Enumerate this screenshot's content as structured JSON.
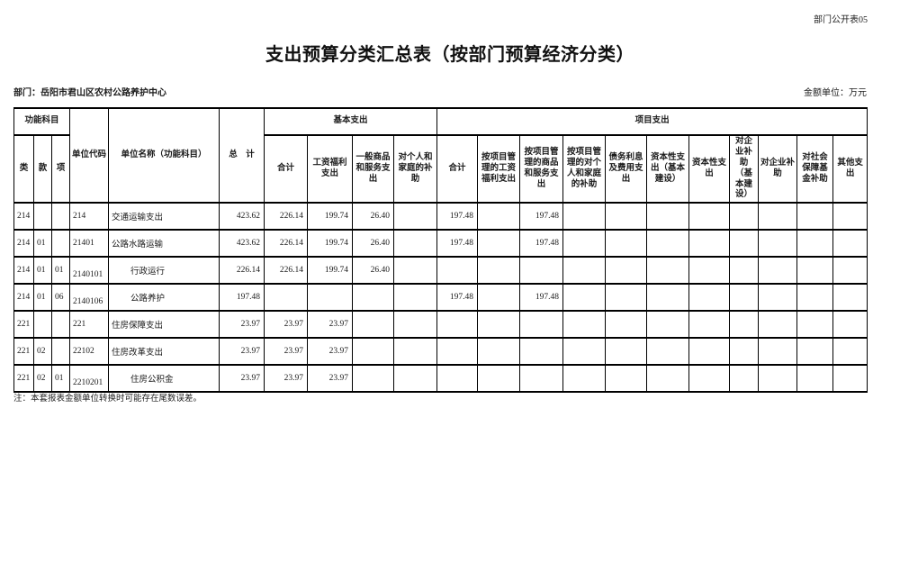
{
  "page": {
    "doc_code": "部门公开表05",
    "title": "支出预算分类汇总表（按部门预算经济分类）",
    "department_label": "部门：岳阳市君山区农村公路养护中心",
    "unit_label": "金额单位：万元",
    "note": "注：本套报表金额单位转换时可能存在尾数误差。"
  },
  "table": {
    "header": {
      "func_group": "功能科目",
      "cls": "类",
      "sec": "款",
      "item": "项",
      "unit_code": "单位代码",
      "unit_name": "单位名称（功能科目）",
      "total": "总　计",
      "basic_group": "基本支出",
      "basic_cols": [
        "合计",
        "工资福利支出",
        "一般商品和服务支出",
        "对个人和家庭的补助"
      ],
      "project_group": "项目支出",
      "project_cols": [
        "合计",
        "按项目管理的工资福利支出",
        "按项目管理的商品和服务支出",
        "按项目管理的对个人和家庭的补助",
        "债务利息及费用支出",
        "资本性支出（基本建设）",
        "资本性支出",
        "对企业补助（基本建设）",
        "对企业补助",
        "对社会保障基金补助",
        "其他支出"
      ]
    },
    "rows": [
      {
        "cls": "214",
        "sec": "",
        "item": "",
        "code": "214",
        "name": "交通运输支出",
        "indent": false,
        "values": [
          "423.62",
          "226.14",
          "199.74",
          "26.40",
          "",
          "197.48",
          "",
          "197.48",
          "",
          "",
          "",
          "",
          "",
          "",
          "",
          ""
        ]
      },
      {
        "cls": "214",
        "sec": "01",
        "item": "",
        "code": "21401",
        "name": "公路水路运输",
        "indent": false,
        "values": [
          "423.62",
          "226.14",
          "199.74",
          "26.40",
          "",
          "197.48",
          "",
          "197.48",
          "",
          "",
          "",
          "",
          "",
          "",
          "",
          ""
        ]
      },
      {
        "cls": "214",
        "sec": "01",
        "item": "01",
        "code": "2140101",
        "name": "行政运行",
        "indent": true,
        "values": [
          "226.14",
          "226.14",
          "199.74",
          "26.40",
          "",
          "",
          "",
          "",
          "",
          "",
          "",
          "",
          "",
          "",
          "",
          ""
        ]
      },
      {
        "cls": "214",
        "sec": "01",
        "item": "06",
        "code": "2140106",
        "name": "公路养护",
        "indent": true,
        "values": [
          "197.48",
          "",
          "",
          "",
          "",
          "197.48",
          "",
          "197.48",
          "",
          "",
          "",
          "",
          "",
          "",
          "",
          ""
        ]
      },
      {
        "cls": "221",
        "sec": "",
        "item": "",
        "code": "221",
        "name": "住房保障支出",
        "indent": false,
        "values": [
          "23.97",
          "23.97",
          "23.97",
          "",
          "",
          "",
          "",
          "",
          "",
          "",
          "",
          "",
          "",
          "",
          "",
          ""
        ]
      },
      {
        "cls": "221",
        "sec": "02",
        "item": "",
        "code": "22102",
        "name": "住房改革支出",
        "indent": false,
        "values": [
          "23.97",
          "23.97",
          "23.97",
          "",
          "",
          "",
          "",
          "",
          "",
          "",
          "",
          "",
          "",
          "",
          "",
          ""
        ]
      },
      {
        "cls": "221",
        "sec": "02",
        "item": "01",
        "code": "2210201",
        "name": "住房公积金",
        "indent": true,
        "values": [
          "23.97",
          "23.97",
          "23.97",
          "",
          "",
          "",
          "",
          "",
          "",
          "",
          "",
          "",
          "",
          "",
          "",
          ""
        ]
      }
    ]
  }
}
